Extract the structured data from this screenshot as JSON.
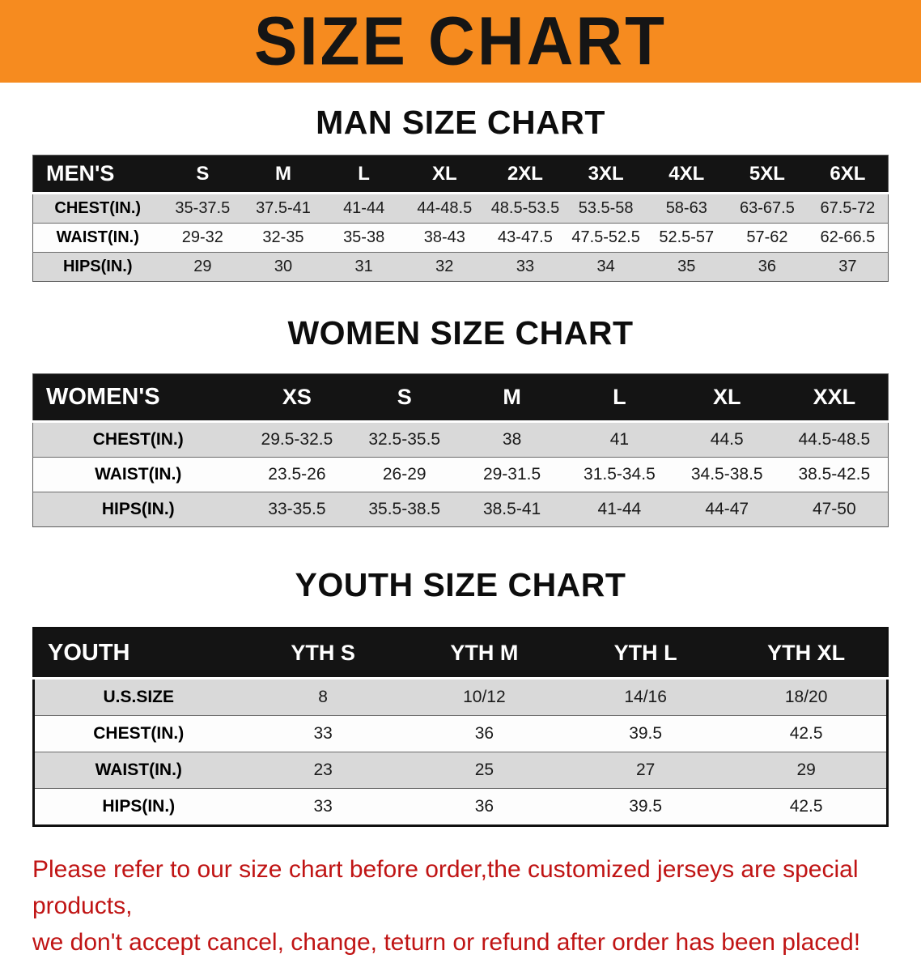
{
  "banner": {
    "title": "SIZE CHART",
    "bg_color": "#f68b1f"
  },
  "sections": {
    "men": {
      "heading": "MAN SIZE CHART",
      "table": {
        "header_label": "MEN'S",
        "columns": [
          "S",
          "M",
          "L",
          "XL",
          "2XL",
          "3XL",
          "4XL",
          "5XL",
          "6XL"
        ],
        "rows": [
          {
            "label": "CHEST(IN.)",
            "values": [
              "35-37.5",
              "37.5-41",
              "41-44",
              "44-48.5",
              "48.5-53.5",
              "53.5-58",
              "58-63",
              "63-67.5",
              "67.5-72"
            ]
          },
          {
            "label": "WAIST(IN.)",
            "values": [
              "29-32",
              "32-35",
              "35-38",
              "38-43",
              "43-47.5",
              "47.5-52.5",
              "52.5-57",
              "57-62",
              "62-66.5"
            ]
          },
          {
            "label": "HIPS(IN.)",
            "values": [
              "29",
              "30",
              "31",
              "32",
              "33",
              "34",
              "35",
              "36",
              "37"
            ]
          }
        ]
      }
    },
    "women": {
      "heading": "WOMEN SIZE CHART",
      "table": {
        "header_label": "WOMEN'S",
        "columns": [
          "XS",
          "S",
          "M",
          "L",
          "XL",
          "XXL"
        ],
        "rows": [
          {
            "label": "CHEST(IN.)",
            "values": [
              "29.5-32.5",
              "32.5-35.5",
              "38",
              "41",
              "44.5",
              "44.5-48.5"
            ]
          },
          {
            "label": "WAIST(IN.)",
            "values": [
              "23.5-26",
              "26-29",
              "29-31.5",
              "31.5-34.5",
              "34.5-38.5",
              "38.5-42.5"
            ]
          },
          {
            "label": "HIPS(IN.)",
            "values": [
              "33-35.5",
              "35.5-38.5",
              "38.5-41",
              "41-44",
              "44-47",
              "47-50"
            ]
          }
        ]
      }
    },
    "youth": {
      "heading": "YOUTH SIZE CHART",
      "table": {
        "header_label": "YOUTH",
        "columns": [
          "YTH S",
          "YTH M",
          "YTH L",
          "YTH XL"
        ],
        "rows": [
          {
            "label": "U.S.SIZE",
            "values": [
              "8",
              "10/12",
              "14/16",
              "18/20"
            ]
          },
          {
            "label": "CHEST(IN.)",
            "values": [
              "33",
              "36",
              "39.5",
              "42.5"
            ]
          },
          {
            "label": "WAIST(IN.)",
            "values": [
              "23",
              "25",
              "27",
              "29"
            ]
          },
          {
            "label": "HIPS(IN.)",
            "values": [
              "33",
              "36",
              "39.5",
              "42.5"
            ]
          }
        ]
      }
    }
  },
  "footer": {
    "line1": "Please refer to our size chart before order,the customized jerseys are special products,",
    "line2": "we don't accept cancel, change, teturn or refund after order has been placed!",
    "color": "#c01414"
  }
}
